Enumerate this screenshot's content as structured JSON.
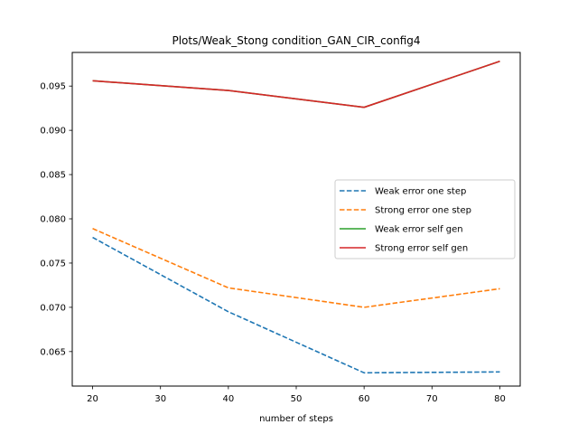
{
  "chart_data": {
    "type": "line",
    "title": "Plots/Weak_Stong condition_GAN_CIR_config4",
    "xlabel": "number of steps",
    "ylabel": "",
    "x": [
      20,
      40,
      60,
      80
    ],
    "xticks": [
      20,
      30,
      40,
      50,
      60,
      70,
      80
    ],
    "xlim": [
      17,
      83
    ],
    "yticks": [
      "0.065",
      "0.070",
      "0.075",
      "0.080",
      "0.085",
      "0.090",
      "0.095"
    ],
    "ylim": [
      0.0611,
      0.0988
    ],
    "grid": false,
    "legend_position": "center-right",
    "series": [
      {
        "name": "Weak error one step",
        "values": [
          0.0779,
          0.0695,
          0.0626,
          0.0627
        ],
        "color": "#1f77b4",
        "dash": "dashed"
      },
      {
        "name": "Strong error one step",
        "values": [
          0.0789,
          0.0722,
          0.07,
          0.0721
        ],
        "color": "#ff7f0e",
        "dash": "dashed"
      },
      {
        "name": "Weak error self gen",
        "values": [
          0.0956,
          0.0945,
          0.0926,
          0.0978
        ],
        "color": "#2ca02c",
        "dash": "solid"
      },
      {
        "name": "Strong error self gen",
        "values": [
          0.0956,
          0.0945,
          0.0926,
          0.0978
        ],
        "color": "#d62728",
        "dash": "solid"
      }
    ]
  }
}
